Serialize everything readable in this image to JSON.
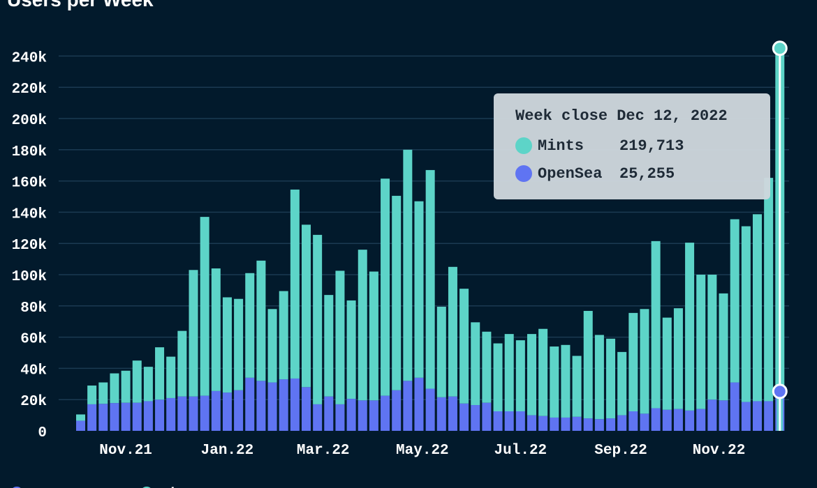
{
  "title": "Users per Week",
  "colors": {
    "background": "#021a2c",
    "mints": "#5dd4c8",
    "opensea": "#5f74f2",
    "grid": "#1b3a52",
    "cursor": "#ffffff"
  },
  "tooltip": {
    "title": "Week close Dec 12, 2022",
    "rows": [
      {
        "label": "Mints",
        "value": "219,713",
        "color": "#5dd4c8"
      },
      {
        "label": "OpenSea",
        "value": "25,255",
        "color": "#5f74f2"
      }
    ]
  },
  "chart_data": {
    "type": "bar",
    "stacked": true,
    "title": "Users per Week",
    "xlabel": "",
    "ylabel": "",
    "ylim": [
      0,
      250000
    ],
    "grid": true,
    "y_ticks": [
      {
        "value": 0,
        "label": "0"
      },
      {
        "value": 20000,
        "label": "20k"
      },
      {
        "value": 40000,
        "label": "40k"
      },
      {
        "value": 60000,
        "label": "60k"
      },
      {
        "value": 80000,
        "label": "80k"
      },
      {
        "value": 100000,
        "label": "100k"
      },
      {
        "value": 120000,
        "label": "120k"
      },
      {
        "value": 140000,
        "label": "140k"
      },
      {
        "value": 160000,
        "label": "160k"
      },
      {
        "value": 180000,
        "label": "180k"
      },
      {
        "value": 200000,
        "label": "200k"
      },
      {
        "value": 220000,
        "label": "220k"
      },
      {
        "value": 240000,
        "label": "240k"
      }
    ],
    "x_ticks": [
      {
        "label": "Nov.21",
        "index": 4
      },
      {
        "label": "Jan.22",
        "index": 13
      },
      {
        "label": "Mar.22",
        "index": 21.5
      },
      {
        "label": "May.22",
        "index": 30.3
      },
      {
        "label": "Jul.22",
        "index": 39
      },
      {
        "label": "Sep.22",
        "index": 47.9
      },
      {
        "label": "Nov.22",
        "index": 56.6
      }
    ],
    "series": [
      {
        "name": "OpenSea",
        "color": "#5f74f2",
        "values": [
          6500,
          17000,
          17300,
          17800,
          18000,
          18000,
          19000,
          20000,
          21000,
          22000,
          22000,
          22500,
          25500,
          24500,
          26000,
          34000,
          32000,
          31000,
          33000,
          33500,
          28000,
          17000,
          22000,
          17000,
          20500,
          19500,
          19500,
          22500,
          26000,
          32000,
          34000,
          27000,
          21500,
          22000,
          17500,
          16500,
          18000,
          12500,
          12500,
          12500,
          10000,
          9500,
          8500,
          8500,
          9000,
          8000,
          7500,
          8000,
          10000,
          12500,
          11000,
          14500,
          13500,
          14000,
          13000,
          14000,
          20000,
          19500,
          31000,
          18500,
          19000,
          19000,
          25255
        ]
      },
      {
        "name": "Mints",
        "color": "#5dd4c8",
        "values": [
          4000,
          12000,
          13700,
          19000,
          20500,
          27000,
          22000,
          33500,
          26500,
          42000,
          81000,
          114500,
          78500,
          61000,
          58500,
          67000,
          77000,
          47000,
          56500,
          121000,
          104000,
          108500,
          65000,
          85500,
          63000,
          96500,
          82500,
          139000,
          124500,
          148000,
          113000,
          140000,
          58000,
          83000,
          73500,
          53000,
          45500,
          43500,
          49500,
          45500,
          52000,
          55800,
          45500,
          46500,
          39000,
          68800,
          53900,
          51000,
          40500,
          63000,
          67000,
          107000,
          59000,
          64500,
          107500,
          86000,
          80000,
          68500,
          104500,
          112500,
          119700,
          143000,
          219713
        ]
      }
    ],
    "highlight_index": 62
  },
  "legend": {
    "items": [
      {
        "label": "OpenSea",
        "color": "#5f74f2"
      },
      {
        "label": "Mints",
        "color": "#5dd4c8"
      }
    ]
  }
}
